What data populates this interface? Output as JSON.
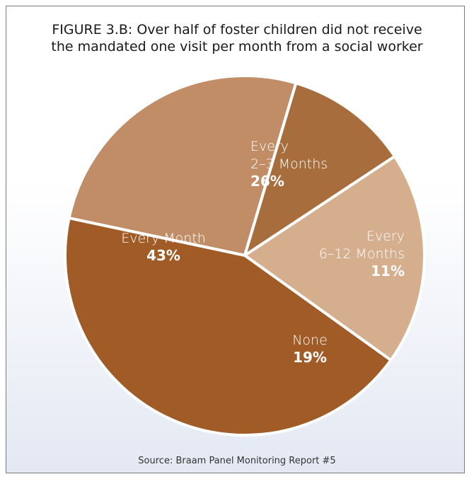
{
  "chart_data": {
    "type": "pie",
    "title_lines": [
      "FIGURE 3.B: Over half of foster children did not receive",
      "the mandated one visit per month from a social worker"
    ],
    "slices": [
      {
        "label_lines": [
          "Every",
          "2–3 Months"
        ],
        "value": 26,
        "value_label": "26%",
        "color": "#c18d66",
        "label_align": "start"
      },
      {
        "label_lines": [
          "Every",
          "6–12 Months"
        ],
        "value": 11,
        "value_label": "11%",
        "color": "#a86d3c",
        "label_align": "end"
      },
      {
        "label_lines": [
          "None"
        ],
        "value": 19,
        "value_label": "19%",
        "color": "#d5ae8d",
        "label_align": "middle"
      },
      {
        "label_lines": [
          "Every Month"
        ],
        "value": 43,
        "value_label": "43%",
        "color": "#a05b26",
        "label_align": "middle"
      }
    ],
    "source": "Source: Braam Panel Monitoring Report #5",
    "border_color": "#7a7a7a",
    "slice_separator_color": "#ffffff",
    "label_color": "#ffffff"
  }
}
